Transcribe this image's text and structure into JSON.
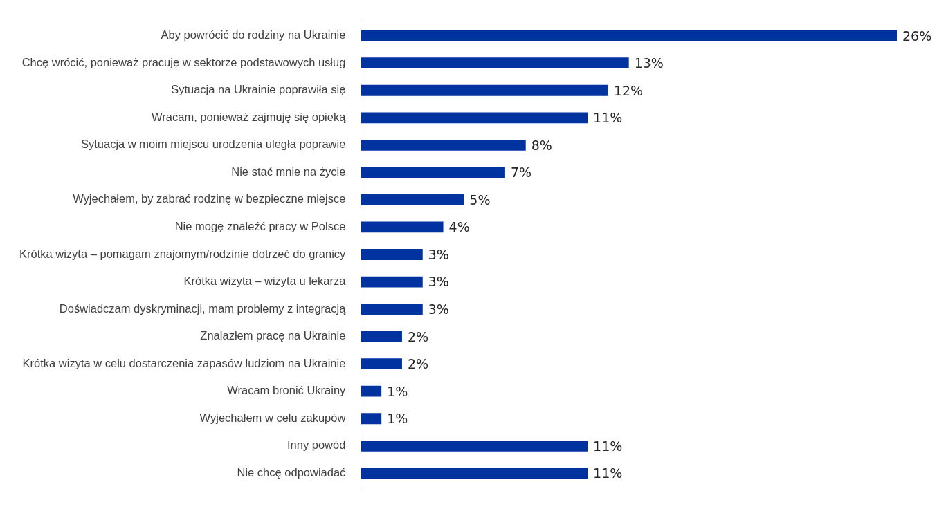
{
  "chart_data": {
    "type": "bar",
    "orientation": "horizontal",
    "categories": [
      "Aby powrócić do rodziny na Ukrainie",
      "Chcę wrócić, ponieważ pracuję w sektorze podstawowych usług",
      "Sytuacja na Ukrainie poprawiła się",
      "Wracam, ponieważ zajmuję się opieką",
      "Sytuacja w moim miejscu urodzenia uległa poprawie",
      "Nie stać mnie na życie",
      "Wyjechałem, by zabrać rodzinę w bezpieczne miejsce",
      "Nie mogę znaleźć pracy w Polsce",
      "Krótka wizyta – pomagam znajomym/rodzinie dotrzeć do granicy",
      "Krótka wizyta – wizyta u lekarza",
      "Doświadczam dyskryminacji, mam problemy z integracją",
      "Znalazłem pracę na Ukrainie",
      "Krótka wizyta w celu dostarczenia zapasów ludziom na Ukrainie",
      "Wracam bronić Ukrainy",
      "Wyjechałem w celu zakupów",
      "Inny powód",
      "Nie chcę odpowiadać"
    ],
    "values": [
      26,
      13,
      12,
      11,
      8,
      7,
      5,
      4,
      3,
      3,
      3,
      2,
      2,
      1,
      1,
      11,
      11
    ],
    "value_labels": [
      "26%",
      "13%",
      "12%",
      "11%",
      "8%",
      "7%",
      "5%",
      "4%",
      "3%",
      "3%",
      "3%",
      "2%",
      "2%",
      "1%",
      "1%",
      "11%",
      "11%"
    ],
    "color": "#0033a0"
  }
}
